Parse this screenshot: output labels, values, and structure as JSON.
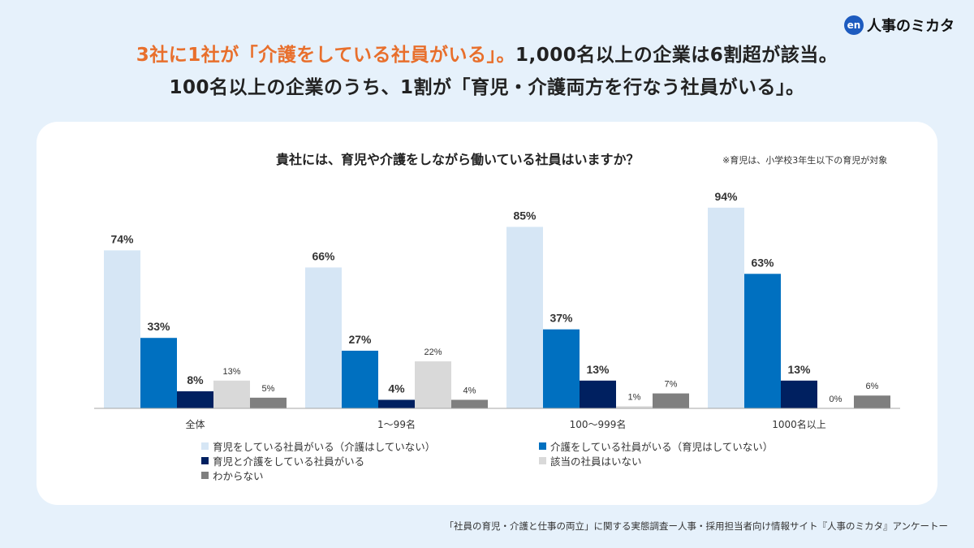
{
  "logo": {
    "badge": "en",
    "text": "人事のミカタ"
  },
  "headline": {
    "line1_accent": "3社に1社が「介護をしている社員がいる」。",
    "line1_rest": "1,000名以上の企業は6割超が該当。",
    "line2": "100名以上の企業のうち、1割が「育児・介護両方を行なう社員がいる」。"
  },
  "colors": {
    "accent": "#e86f2c",
    "background": "#e6f1fb",
    "childcare_only": "#d6e6f5",
    "nursing_only": "#0070c0",
    "both": "#002060",
    "none": "#d9d9d9",
    "unknown": "#7f7f7f"
  },
  "chart_data": {
    "type": "bar",
    "title": "貴社には、育児や介護をしながら働いている社員はいますか？",
    "note": "※育児は、小学校3年生以下の育児が対象",
    "categories": [
      "全体",
      "1〜99名",
      "100〜999名",
      "1000名以上"
    ],
    "series": [
      {
        "name": "育児をしている社員がいる（介護はしていない）",
        "values": [
          74,
          66,
          85,
          94
        ],
        "labels": [
          "74%",
          "66%",
          "85%",
          "94%"
        ],
        "color": "#d6e6f5",
        "emphasis": true
      },
      {
        "name": "介護をしている社員がいる（育児はしていない）",
        "values": [
          33,
          27,
          37,
          63
        ],
        "labels": [
          "33%",
          "27%",
          "37%",
          "63%"
        ],
        "color": "#0070c0",
        "emphasis": true
      },
      {
        "name": "育児と介護をしている社員がいる",
        "values": [
          8,
          4,
          13,
          13
        ],
        "labels": [
          "8%",
          "4%",
          "13%",
          "13%"
        ],
        "color": "#002060",
        "emphasis": true
      },
      {
        "name": "該当の社員はいない",
        "values": [
          13,
          22,
          1,
          0
        ],
        "labels": [
          "13%",
          "22%",
          "1%",
          "0%"
        ],
        "color": "#d9d9d9",
        "emphasis": false
      },
      {
        "name": "わからない",
        "values": [
          5,
          4,
          7,
          6
        ],
        "labels": [
          "5%",
          "4%",
          "7%",
          "6%"
        ],
        "color": "#7f7f7f",
        "emphasis": false
      }
    ],
    "ylim": [
      0,
      100
    ],
    "grid": false,
    "legend_position": "bottom"
  },
  "source": "「社員の育児・介護と仕事の両立」に関する実態調査ー人事・採用担当者向け情報サイト『人事のミカタ』アンケートー"
}
